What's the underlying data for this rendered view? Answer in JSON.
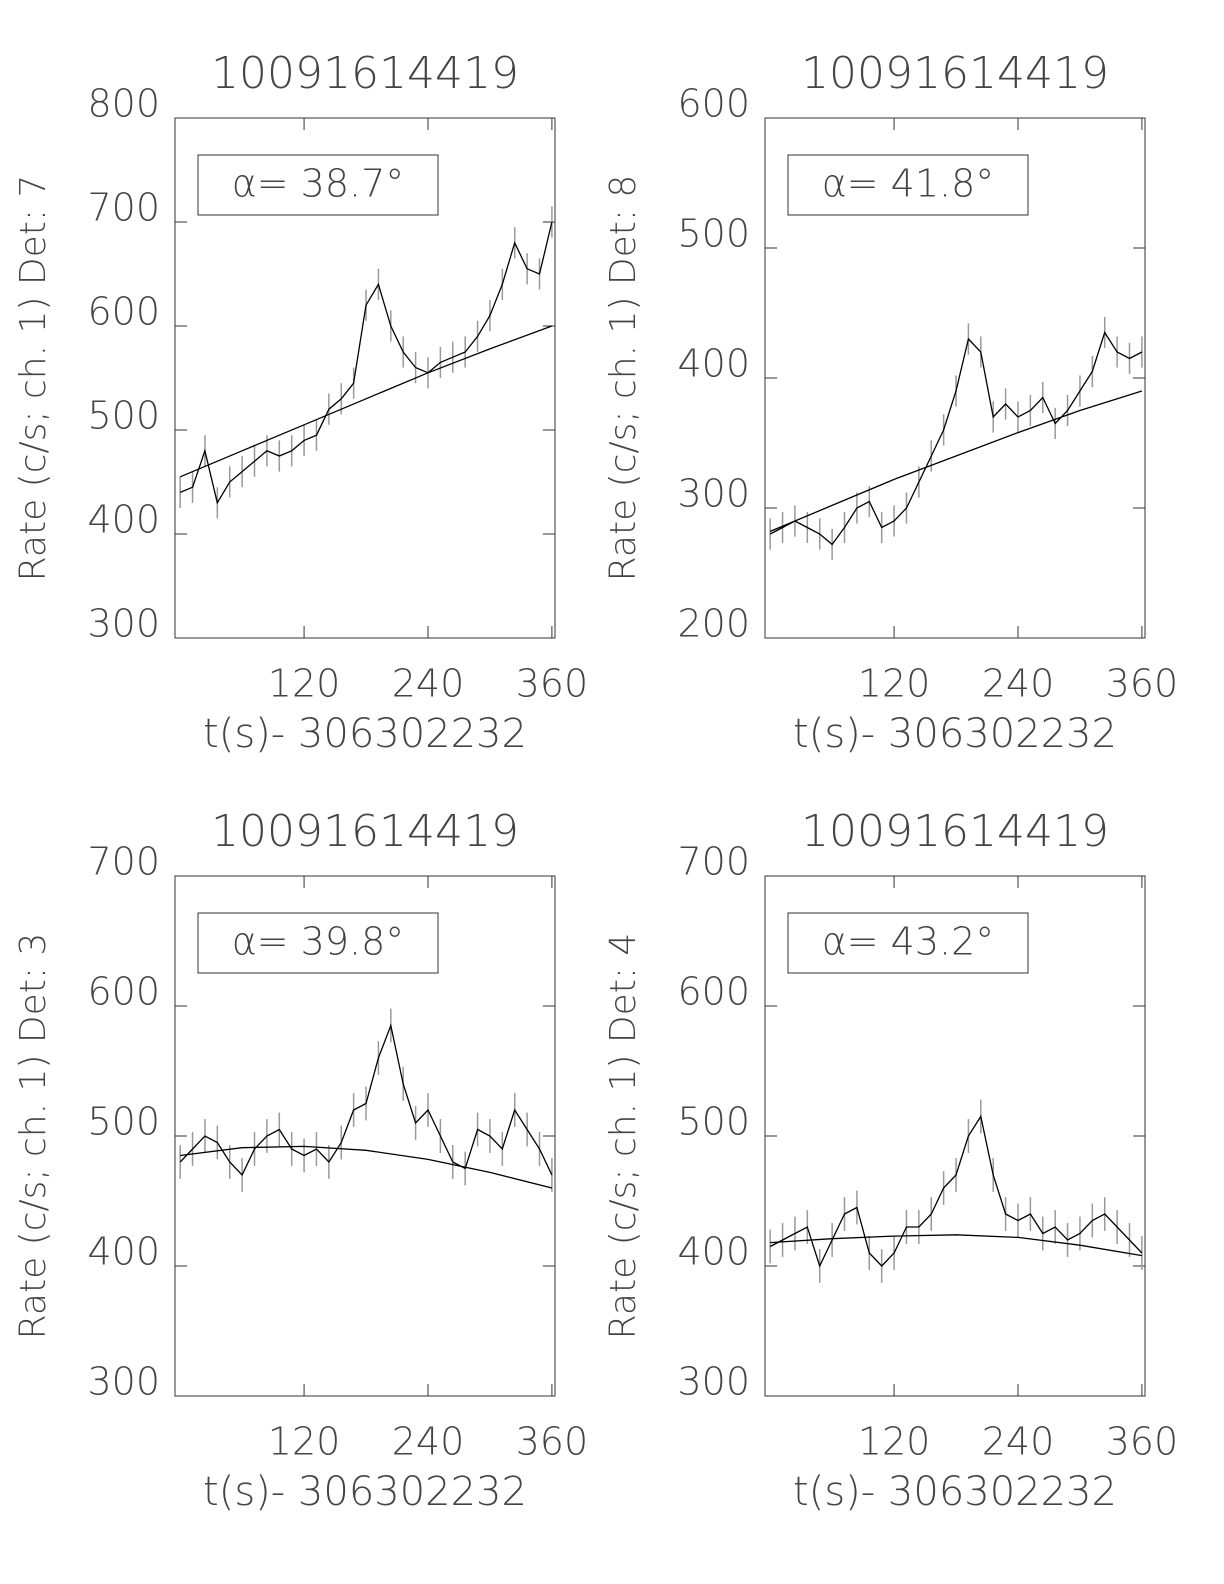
{
  "chart_data": [
    {
      "type": "line",
      "title": "10091614419",
      "x_label": "t(s)- 306302232",
      "y_label": "Rate (c/s; ch. 1) Det: 7",
      "annotation": "α= 38.7°",
      "xlim": [
        -5,
        363
      ],
      "ylim": [
        300,
        800
      ],
      "xticks": [
        120,
        240,
        360
      ],
      "yticks": [
        300,
        400,
        500,
        600,
        700,
        800
      ],
      "series": [
        {
          "color": "#000000",
          "error_color": "#999999",
          "error": 15,
          "x": [
            0,
            12,
            24,
            36,
            48,
            60,
            72,
            84,
            96,
            108,
            120,
            132,
            144,
            156,
            168,
            180,
            192,
            204,
            216,
            228,
            240,
            252,
            264,
            276,
            288,
            300,
            312,
            324,
            336,
            348,
            360
          ],
          "values": [
            440,
            445,
            480,
            430,
            450,
            460,
            470,
            480,
            475,
            480,
            490,
            495,
            520,
            530,
            545,
            620,
            640,
            600,
            575,
            560,
            555,
            565,
            570,
            575,
            590,
            610,
            640,
            680,
            655,
            650,
            700
          ]
        },
        {
          "color": "#000000",
          "x": [
            0,
            60,
            120,
            180,
            240,
            300,
            360
          ],
          "values": [
            455,
            480,
            505,
            530,
            555,
            578,
            600
          ]
        }
      ]
    },
    {
      "type": "line",
      "title": "10091614419",
      "x_label": "t(s)- 306302232",
      "y_label": "Rate (c/s; ch. 1) Det: 8",
      "annotation": "α= 41.8°",
      "xlim": [
        -5,
        363
      ],
      "ylim": [
        200,
        600
      ],
      "xticks": [
        120,
        240,
        360
      ],
      "yticks": [
        200,
        300,
        400,
        500,
        600
      ],
      "series": [
        {
          "color": "#000000",
          "error_color": "#999999",
          "error": 12,
          "x": [
            0,
            12,
            24,
            36,
            48,
            60,
            72,
            84,
            96,
            108,
            120,
            132,
            144,
            156,
            168,
            180,
            192,
            204,
            216,
            228,
            240,
            252,
            264,
            276,
            288,
            300,
            312,
            324,
            336,
            348,
            360
          ],
          "values": [
            280,
            285,
            290,
            285,
            280,
            272,
            285,
            300,
            305,
            285,
            290,
            300,
            320,
            340,
            360,
            390,
            430,
            420,
            370,
            380,
            370,
            375,
            385,
            365,
            375,
            390,
            405,
            435,
            420,
            415,
            420
          ]
        },
        {
          "color": "#000000",
          "x": [
            0,
            60,
            120,
            180,
            240,
            300,
            360
          ],
          "values": [
            282,
            302,
            322,
            340,
            358,
            375,
            390
          ]
        }
      ]
    },
    {
      "type": "line",
      "title": "10091614419",
      "x_label": "t(s)- 306302232",
      "y_label": "Rate (c/s; ch. 1) Det: 3",
      "annotation": "α= 39.8°",
      "xlim": [
        -5,
        363
      ],
      "ylim": [
        300,
        700
      ],
      "xticks": [
        120,
        240,
        360
      ],
      "yticks": [
        300,
        400,
        500,
        600,
        700
      ],
      "series": [
        {
          "color": "#000000",
          "error_color": "#999999",
          "error": 13,
          "x": [
            0,
            12,
            24,
            36,
            48,
            60,
            72,
            84,
            96,
            108,
            120,
            132,
            144,
            156,
            168,
            180,
            192,
            204,
            216,
            228,
            240,
            252,
            264,
            276,
            288,
            300,
            312,
            324,
            336,
            348,
            360
          ],
          "values": [
            480,
            490,
            500,
            495,
            480,
            470,
            490,
            500,
            505,
            490,
            485,
            490,
            480,
            495,
            520,
            525,
            560,
            585,
            540,
            510,
            520,
            500,
            480,
            475,
            505,
            500,
            490,
            520,
            505,
            490,
            470
          ]
        },
        {
          "color": "#000000",
          "x": [
            0,
            60,
            120,
            180,
            240,
            300,
            360
          ],
          "values": [
            485,
            491,
            492,
            489,
            482,
            472,
            460
          ]
        }
      ]
    },
    {
      "type": "line",
      "title": "10091614419",
      "x_label": "t(s)- 306302232",
      "y_label": "Rate (c/s; ch. 1) Det: 4",
      "annotation": "α= 43.2°",
      "xlim": [
        -5,
        363
      ],
      "ylim": [
        300,
        700
      ],
      "xticks": [
        120,
        240,
        360
      ],
      "yticks": [
        300,
        400,
        500,
        600,
        700
      ],
      "series": [
        {
          "color": "#000000",
          "error_color": "#999999",
          "error": 13,
          "x": [
            0,
            12,
            24,
            36,
            48,
            60,
            72,
            84,
            96,
            108,
            120,
            132,
            144,
            156,
            168,
            180,
            192,
            204,
            216,
            228,
            240,
            252,
            264,
            276,
            288,
            300,
            312,
            324,
            336,
            348,
            360
          ],
          "values": [
            415,
            420,
            425,
            430,
            400,
            420,
            440,
            445,
            410,
            400,
            410,
            430,
            430,
            440,
            460,
            470,
            500,
            515,
            470,
            440,
            435,
            440,
            425,
            430,
            420,
            425,
            435,
            440,
            430,
            420,
            410
          ]
        },
        {
          "color": "#000000",
          "x": [
            0,
            60,
            120,
            180,
            240,
            300,
            360
          ],
          "values": [
            418,
            421,
            423,
            424,
            422,
            416,
            408
          ]
        }
      ]
    }
  ]
}
